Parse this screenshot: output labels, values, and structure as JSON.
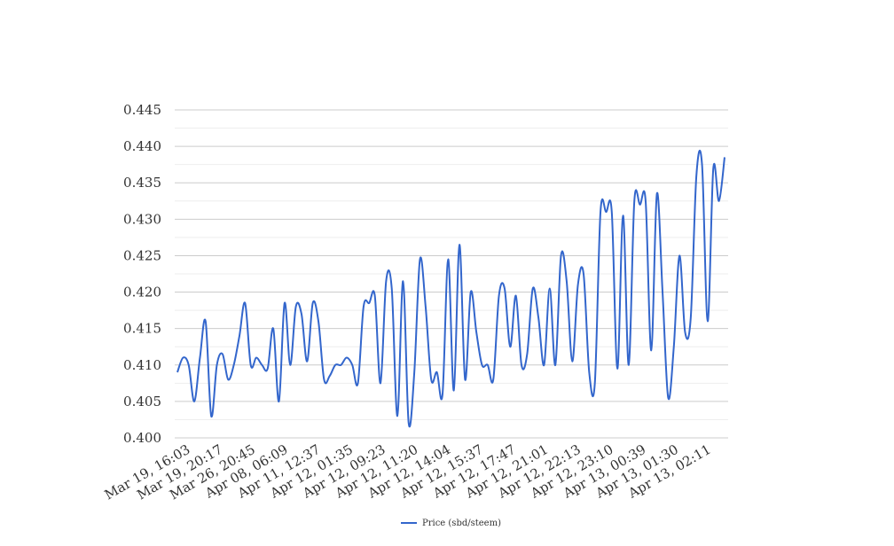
{
  "chart_data": {
    "type": "line",
    "ylim": [
      0.4,
      0.445
    ],
    "y_ticks": [
      "0.400",
      "0.405",
      "0.410",
      "0.415",
      "0.420",
      "0.425",
      "0.430",
      "0.435",
      "0.440",
      "0.445"
    ],
    "x_tick_labels": [
      "Mar 19, 16:03",
      "Mar 19, 20:17",
      "Mar 26, 20:45",
      "Apr 08, 06:09",
      "Apr 11, 12:37",
      "Apr 12, 01:35",
      "Apr 12, 09:23",
      "Apr 12, 11:20",
      "Apr 12, 14:04",
      "Apr 12, 15:37",
      "Apr 12, 17:47",
      "Apr 12, 21:01",
      "Apr 12, 22:13",
      "Apr 12, 23:10",
      "Apr 13, 00:39",
      "Apr 13, 01:30",
      "Apr 13, 02:11"
    ],
    "grid": true,
    "legend_position": "bottom-center",
    "series": [
      {
        "name": "Price (sbd/steem)",
        "color": "#3366cc",
        "values": [
          0.409,
          0.411,
          0.41,
          0.405,
          0.411,
          0.416,
          0.403,
          0.41,
          0.4115,
          0.408,
          0.41,
          0.414,
          0.4185,
          0.41,
          0.411,
          0.41,
          0.4095,
          0.415,
          0.405,
          0.4185,
          0.41,
          0.418,
          0.417,
          0.4105,
          0.4185,
          0.416,
          0.408,
          0.4085,
          0.41,
          0.41,
          0.411,
          0.41,
          0.4075,
          0.418,
          0.4185,
          0.4195,
          0.4075,
          0.4215,
          0.4205,
          0.403,
          0.4215,
          0.402,
          0.409,
          0.4245,
          0.418,
          0.408,
          0.409,
          0.406,
          0.4245,
          0.4065,
          0.4265,
          0.408,
          0.42,
          0.4145,
          0.41,
          0.41,
          0.408,
          0.4195,
          0.4205,
          0.4125,
          0.4195,
          0.41,
          0.4115,
          0.4205,
          0.4165,
          0.41,
          0.4205,
          0.41,
          0.425,
          0.4215,
          0.4105,
          0.421,
          0.4225,
          0.409,
          0.4075,
          0.431,
          0.431,
          0.431,
          0.4095,
          0.4305,
          0.41,
          0.4325,
          0.432,
          0.4325,
          0.412,
          0.4335,
          0.42,
          0.4055,
          0.4125,
          0.425,
          0.4145,
          0.4165,
          0.436,
          0.4375,
          0.416,
          0.437,
          0.4325,
          0.4385
        ]
      }
    ]
  }
}
